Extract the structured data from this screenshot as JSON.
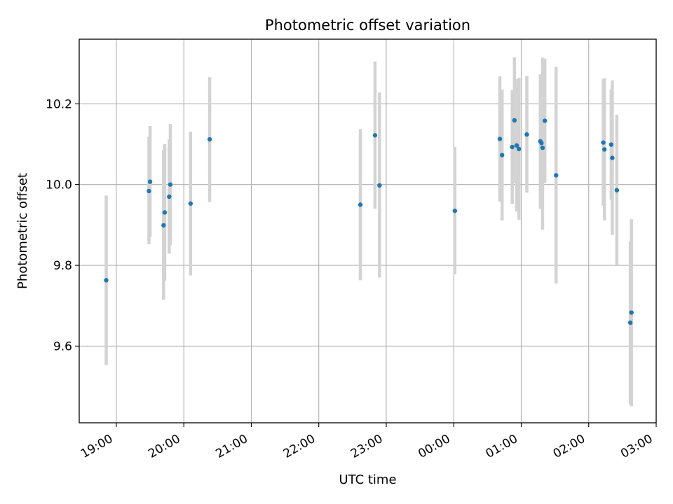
{
  "chart_data": {
    "type": "scatter",
    "title": "Photometric offset variation",
    "xlabel": "UTC time",
    "ylabel": "Photometric offset",
    "x_unit": "datetime",
    "xlim": [
      "18:27",
      "03:00 (+1 day)"
    ],
    "ylim": [
      9.41,
      10.36
    ],
    "x_ticks": [
      "19:00",
      "20:00",
      "21:00",
      "22:00",
      "23:00",
      "00:00",
      "01:00",
      "02:00",
      "03:00"
    ],
    "y_ticks": [
      "9.6",
      "9.8",
      "10.0",
      "10.2"
    ],
    "grid": true,
    "marker_color": "#1f77b4",
    "errorbar_color": "#d3d3d3",
    "points": [
      {
        "t": "18:51",
        "y": 9.763,
        "lo": 9.553,
        "hi": 9.973
      },
      {
        "t": "19:29",
        "y": 9.984,
        "lo": 9.852,
        "hi": 10.118
      },
      {
        "t": "19:30",
        "y": 10.007,
        "lo": 9.87,
        "hi": 10.145
      },
      {
        "t": "19:42",
        "y": 9.899,
        "lo": 9.715,
        "hi": 10.085
      },
      {
        "t": "19:43",
        "y": 9.931,
        "lo": 9.762,
        "hi": 10.1
      },
      {
        "t": "19:47",
        "y": 9.97,
        "lo": 9.829,
        "hi": 10.112
      },
      {
        "t": "19:48",
        "y": 10.0,
        "lo": 9.85,
        "hi": 10.15
      },
      {
        "t": "20:06",
        "y": 9.953,
        "lo": 9.775,
        "hi": 10.131
      },
      {
        "t": "20:23",
        "y": 10.112,
        "lo": 9.957,
        "hi": 10.266
      },
      {
        "t": "22:37",
        "y": 9.95,
        "lo": 9.763,
        "hi": 10.137
      },
      {
        "t": "22:50",
        "y": 10.122,
        "lo": 9.94,
        "hi": 10.305
      },
      {
        "t": "22:54",
        "y": 9.998,
        "lo": 9.77,
        "hi": 10.228
      },
      {
        "t": "00:01",
        "y": 9.935,
        "lo": 9.778,
        "hi": 10.093
      },
      {
        "t": "00:41",
        "y": 10.113,
        "lo": 9.958,
        "hi": 10.268
      },
      {
        "t": "00:43",
        "y": 10.073,
        "lo": 9.911,
        "hi": 10.235
      },
      {
        "t": "00:52",
        "y": 10.093,
        "lo": 9.952,
        "hi": 10.234
      },
      {
        "t": "00:54",
        "y": 10.159,
        "lo": 10.004,
        "hi": 10.315
      },
      {
        "t": "00:56",
        "y": 10.097,
        "lo": 9.933,
        "hi": 10.261
      },
      {
        "t": "00:58",
        "y": 10.088,
        "lo": 9.913,
        "hi": 10.264
      },
      {
        "t": "01:05",
        "y": 10.124,
        "lo": 9.98,
        "hi": 10.269
      },
      {
        "t": "01:17",
        "y": 10.107,
        "lo": 9.94,
        "hi": 10.273
      },
      {
        "t": "01:18",
        "y": 10.103,
        "lo": 9.949,
        "hi": 10.258
      },
      {
        "t": "01:19",
        "y": 10.091,
        "lo": 9.888,
        "hi": 10.314
      },
      {
        "t": "01:21",
        "y": 10.158,
        "lo": 10.004,
        "hi": 10.312
      },
      {
        "t": "01:31",
        "y": 10.023,
        "lo": 9.755,
        "hi": 10.291
      },
      {
        "t": "02:13",
        "y": 10.104,
        "lo": 9.948,
        "hi": 10.261
      },
      {
        "t": "02:14",
        "y": 10.087,
        "lo": 9.911,
        "hi": 10.263
      },
      {
        "t": "02:20",
        "y": 10.099,
        "lo": 9.962,
        "hi": 10.236
      },
      {
        "t": "02:21",
        "y": 10.066,
        "lo": 9.875,
        "hi": 10.258
      },
      {
        "t": "02:25",
        "y": 9.986,
        "lo": 9.8,
        "hi": 10.173
      },
      {
        "t": "02:37",
        "y": 9.658,
        "lo": 9.456,
        "hi": 9.859
      },
      {
        "t": "02:38",
        "y": 9.683,
        "lo": 9.451,
        "hi": 9.914
      }
    ]
  }
}
